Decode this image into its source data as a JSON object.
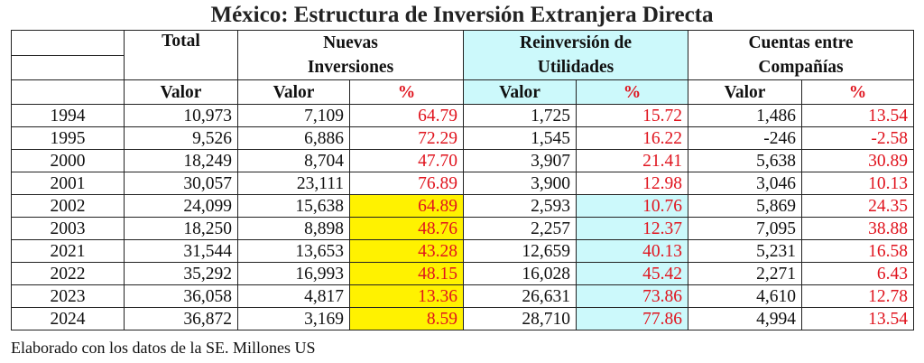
{
  "title": "México: Estructura de Inversión Extranjera Directa",
  "headers": {
    "total": "Total",
    "nuevas": "Nuevas Inversiones",
    "reinversion": "Reinversión de Utilidades",
    "cuentas": "Cuentas entre Compañías",
    "valor": "Valor",
    "pct": "%"
  },
  "colors": {
    "highlight_yellow": "#fff200",
    "highlight_cyan": "#ccf9fb",
    "pct_text": "#e0141e"
  },
  "rows": [
    {
      "year": "1994",
      "total": "10,973",
      "nv": "7,109",
      "np": "64.79",
      "rv": "1,725",
      "rp": "15.72",
      "cv": "1,486",
      "cp": "13.54"
    },
    {
      "year": "1995",
      "total": "9,526",
      "nv": "6,886",
      "np": "72.29",
      "rv": "1,545",
      "rp": "16.22",
      "cv": "-246",
      "cp": "-2.58"
    },
    {
      "year": "2000",
      "total": "18,249",
      "nv": "8,704",
      "np": "47.70",
      "rv": "3,907",
      "rp": "21.41",
      "cv": "5,638",
      "cp": "30.89"
    },
    {
      "year": "2001",
      "total": "30,057",
      "nv": "23,111",
      "np": "76.89",
      "rv": "3,900",
      "rp": "12.98",
      "cv": "3,046",
      "cp": "10.13"
    },
    {
      "year": "2002",
      "total": "24,099",
      "nv": "15,638",
      "np": "64.89",
      "rv": "2,593",
      "rp": "10.76",
      "cv": "5,869",
      "cp": "24.35"
    },
    {
      "year": "2003",
      "total": "18,250",
      "nv": "8,898",
      "np": "48.76",
      "rv": "2,257",
      "rp": "12.37",
      "cv": "7,095",
      "cp": "38.88"
    },
    {
      "year": "2021",
      "total": "31,544",
      "nv": "13,653",
      "np": "43.28",
      "rv": "12,659",
      "rp": "40.13",
      "cv": "5,231",
      "cp": "16.58"
    },
    {
      "year": "2022",
      "total": "35,292",
      "nv": "16,993",
      "np": "48.15",
      "rv": "16,028",
      "rp": "45.42",
      "cv": "2,271",
      "cp": "6.43"
    },
    {
      "year": "2023",
      "total": "36,058",
      "nv": "4,817",
      "np": "13.36",
      "rv": "26,631",
      "rp": "73.86",
      "cv": "4,610",
      "cp": "12.78"
    },
    {
      "year": "2024",
      "total": "36,872",
      "nv": "3,169",
      "np": "8.59",
      "rv": "28,710",
      "rp": "77.86",
      "cv": "4,994",
      "cp": "13.54"
    }
  ],
  "footer": "Elaborado con los datos de la SE. Millones US"
}
